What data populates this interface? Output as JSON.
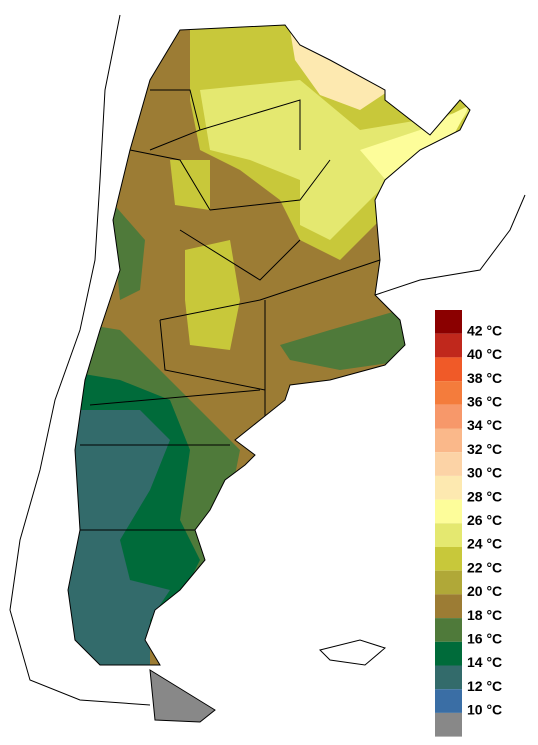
{
  "legend": {
    "labels": [
      "42 °C",
      "40 °C",
      "38 °C",
      "36 °C",
      "34 °C",
      "32 °C",
      "30 °C",
      "28 °C",
      "26 °C",
      "24 °C",
      "22 °C",
      "20 °C",
      "18 °C",
      "16 °C",
      "14 °C",
      "12 °C",
      "10 °C"
    ],
    "colors": [
      "#8b0000",
      "#c0281c",
      "#f05a28",
      "#f47c3c",
      "#f7986a",
      "#fab88a",
      "#fcd3a6",
      "#fde9b0",
      "#fdfd9a",
      "#e4e870",
      "#c8c83a",
      "#b0a838",
      "#9c7c34",
      "#4f7a3a",
      "#006b3a",
      "#336b6b",
      "#3a6ea5",
      "#888888"
    ]
  }
}
